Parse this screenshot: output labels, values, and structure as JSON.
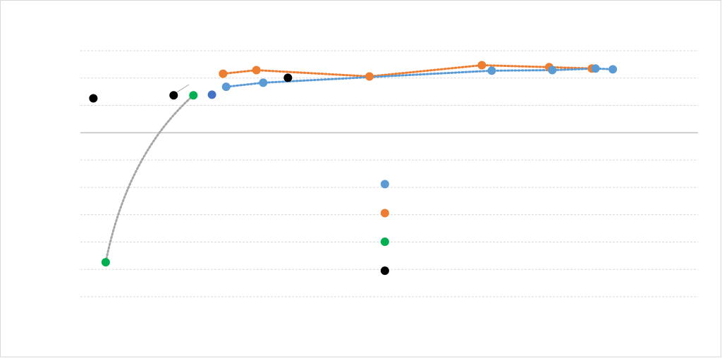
{
  "chart_data": {
    "type": "scatter",
    "xlim": [
      0,
      10
    ],
    "ylim": [
      -6,
      3
    ],
    "yticks": [
      -6,
      -5,
      -4,
      -3,
      -2,
      -1,
      0,
      1,
      2,
      3
    ],
    "grid": true,
    "series": [
      {
        "color": "#000000",
        "trendline": false,
        "x": [
          0.21,
          1.51,
          3.36
        ],
        "values": [
          1.26,
          1.37,
          2.01
        ]
      },
      {
        "color": "#00b050",
        "trendline": true,
        "trend_color": "#a6a6a6",
        "x": [
          0.41,
          1.83
        ],
        "values": [
          -4.74,
          1.37
        ]
      },
      {
        "color": "#4472c4",
        "trendline": false,
        "x": [
          2.13
        ],
        "values": [
          1.39
        ]
      },
      {
        "color": "#ed7d31",
        "trendline": true,
        "trend_color": "#ed7d31",
        "x": [
          2.31,
          2.85,
          4.68,
          6.5,
          7.59,
          8.28
        ],
        "values": [
          2.16,
          2.29,
          2.06,
          2.47,
          2.4,
          2.35
        ]
      },
      {
        "color": "#5b9bd5",
        "trendline": true,
        "trend_color": "#5b9bd5",
        "x": [
          2.36,
          2.96,
          6.66,
          7.64,
          8.34,
          8.62
        ],
        "values": [
          1.68,
          1.83,
          2.27,
          2.29,
          2.35,
          2.32
        ]
      },
      {
        "colors": [
          "#5b9bd5",
          "#ed7d31",
          "#00b050",
          "#000000"
        ],
        "trendline": false,
        "x": [
          4.93,
          4.93,
          4.93,
          4.93
        ],
        "values": [
          -1.88,
          -2.94,
          -3.99,
          -5.05
        ]
      }
    ]
  }
}
